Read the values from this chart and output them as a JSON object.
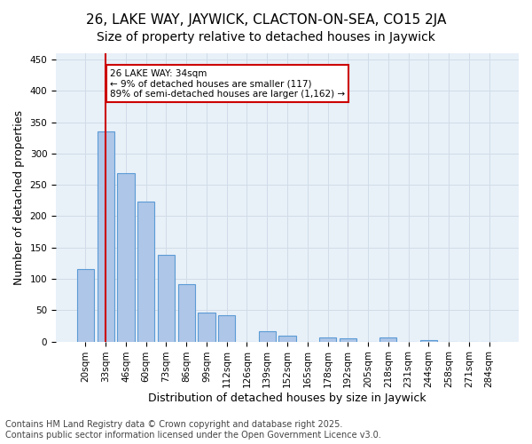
{
  "title1": "26, LAKE WAY, JAYWICK, CLACTON-ON-SEA, CO15 2JA",
  "title2": "Size of property relative to detached houses in Jaywick",
  "xlabel": "Distribution of detached houses by size in Jaywick",
  "ylabel": "Number of detached properties",
  "bar_labels": [
    "20sqm",
    "33sqm",
    "46sqm",
    "60sqm",
    "73sqm",
    "86sqm",
    "99sqm",
    "112sqm",
    "126sqm",
    "139sqm",
    "152sqm",
    "165sqm",
    "178sqm",
    "192sqm",
    "205sqm",
    "218sqm",
    "231sqm",
    "244sqm",
    "258sqm",
    "271sqm",
    "284sqm"
  ],
  "bar_values": [
    115,
    335,
    268,
    224,
    139,
    92,
    46,
    42,
    0,
    17,
    10,
    0,
    6,
    5,
    0,
    6,
    0,
    2,
    0,
    0,
    0
  ],
  "bar_color": "#aec6e8",
  "bar_edge_color": "#5b9bd5",
  "grid_color": "#d0dce8",
  "bg_color": "#e8f0f8",
  "vline_x": 1,
  "vline_color": "#cc0000",
  "annotation_text": "26 LAKE WAY: 34sqm\n← 9% of detached houses are smaller (117)\n89% of semi-detached houses are larger (1,162) →",
  "annotation_box_color": "#ffffff",
  "annotation_box_edge": "#cc0000",
  "footer1": "Contains HM Land Registry data © Crown copyright and database right 2025.",
  "footer2": "Contains public sector information licensed under the Open Government Licence v3.0.",
  "ylim": [
    0,
    460
  ],
  "yticks": [
    0,
    50,
    100,
    150,
    200,
    250,
    300,
    350,
    400,
    450
  ],
  "title_fontsize": 11,
  "subtitle_fontsize": 10,
  "tick_fontsize": 7.5,
  "label_fontsize": 9,
  "footer_fontsize": 7
}
